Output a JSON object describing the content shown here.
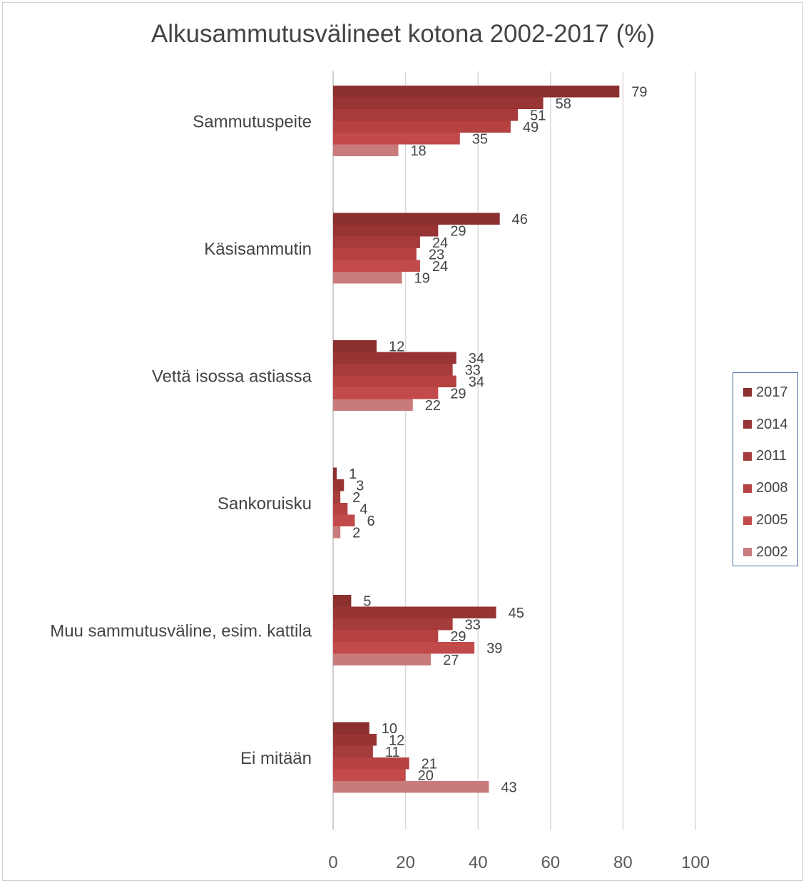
{
  "chart_data": {
    "type": "bar",
    "orientation": "horizontal",
    "title": "Alkusammutusvälineet kotona 2002-2017 (%)",
    "xlabel": "",
    "ylabel": "",
    "xlim": [
      0,
      100
    ],
    "x_ticks": [
      0,
      20,
      40,
      60,
      80,
      100
    ],
    "grid": true,
    "legend_position": "right",
    "categories": [
      "Sammutuspeite",
      "Käsisammutin",
      "Vettä isossa astiassa",
      "Sankoruisku",
      "Muu sammutusväline, esim. kattila",
      "Ei mitään"
    ],
    "series": [
      {
        "name": "2017",
        "color": "#8b2f2f",
        "values": [
          79,
          46,
          12,
          1,
          5,
          10
        ]
      },
      {
        "name": "2014",
        "color": "#983434",
        "values": [
          58,
          29,
          34,
          3,
          45,
          12
        ]
      },
      {
        "name": "2011",
        "color": "#a63b3b",
        "values": [
          51,
          24,
          33,
          2,
          33,
          11
        ]
      },
      {
        "name": "2008",
        "color": "#b54141",
        "values": [
          49,
          23,
          34,
          4,
          29,
          21
        ]
      },
      {
        "name": "2005",
        "color": "#c24a4a",
        "values": [
          35,
          24,
          29,
          6,
          39,
          20
        ]
      },
      {
        "name": "2002",
        "color": "#c97b7b",
        "values": [
          18,
          19,
          22,
          2,
          27,
          43
        ]
      }
    ]
  }
}
